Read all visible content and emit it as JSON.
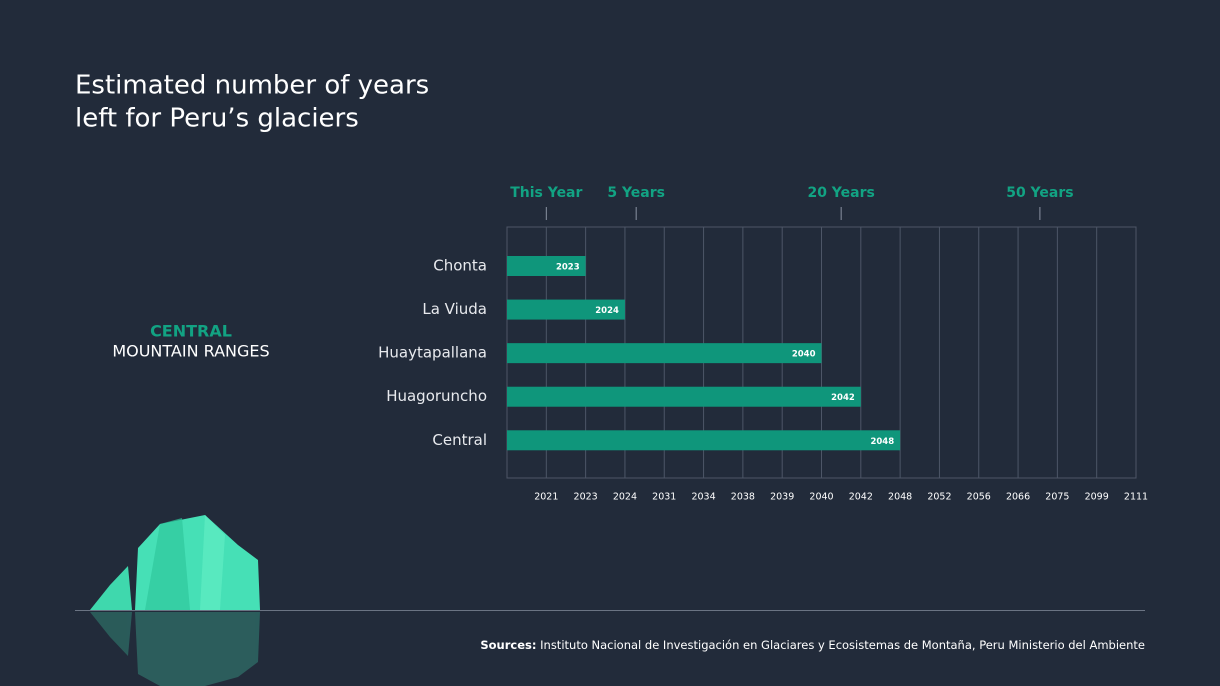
{
  "chart_data": {
    "type": "bar",
    "title": [
      "Estimated number of years",
      "left for Peru’s glaciers"
    ],
    "region": [
      "CENTRAL",
      "MOUNTAIN RANGES"
    ],
    "categories": [
      "Chonta",
      "La Viuda",
      "Huaytapallana",
      "Huagoruncho",
      "Central"
    ],
    "values": [
      2023,
      2024,
      2040,
      2042,
      2048
    ],
    "color": "#0f967b",
    "xlim": [
      2020,
      2111
    ],
    "xticks": [
      2021,
      2023,
      2024,
      2031,
      2034,
      2038,
      2039,
      2040,
      2042,
      2048,
      2052,
      2056,
      2066,
      2075,
      2099,
      2111
    ],
    "grid": true,
    "annotations": [
      {
        "x": 2021,
        "text": "This Year"
      },
      {
        "x": 2026,
        "text": "5 Years"
      },
      {
        "x": 2041,
        "text": "20 Years"
      },
      {
        "x": 2071,
        "text": "50 Years"
      }
    ],
    "source_label": "Sources:",
    "source_text": "Instituto Nacional de Investigación en Glaciares y Ecosistemas de Montaña, Peru Ministerio del Ambiente"
  }
}
